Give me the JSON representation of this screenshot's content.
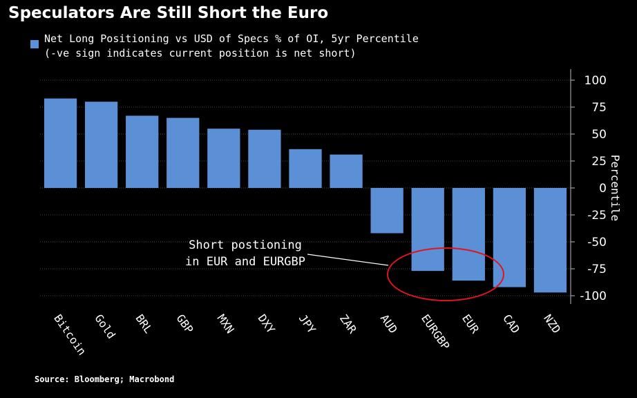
{
  "title": "Speculators Are Still Short the Euro",
  "legend": {
    "line1": "Net Long Positioning vs USD of Specs % of OI, 5yr Percentile",
    "line2": "(-ve sign indicates current position is net short)",
    "color": "#5b8fd6"
  },
  "source": "Source: Bloomberg; Macrobond",
  "annotation": {
    "line1": "Short postioning",
    "line2": "in EUR and EURGBP",
    "ellipse_color": "#e0141e"
  },
  "chart_data": {
    "type": "bar",
    "categories": [
      "Bitcoin",
      "Gold",
      "BRL",
      "GBP",
      "MXN",
      "DXY",
      "JPY",
      "ZAR",
      "AUD",
      "EURGBP",
      "EUR",
      "CAD",
      "NZD"
    ],
    "values": [
      83,
      80,
      67,
      65,
      55,
      54,
      36,
      31,
      -42,
      -77,
      -86,
      -92,
      -97
    ],
    "ylabel": "Percentile",
    "ylim": [
      -100,
      100
    ],
    "yticks": [
      100,
      75,
      50,
      25,
      0,
      -25,
      -50,
      -75,
      -100
    ],
    "grid": true,
    "bar_color": "#5b8fd6"
  }
}
